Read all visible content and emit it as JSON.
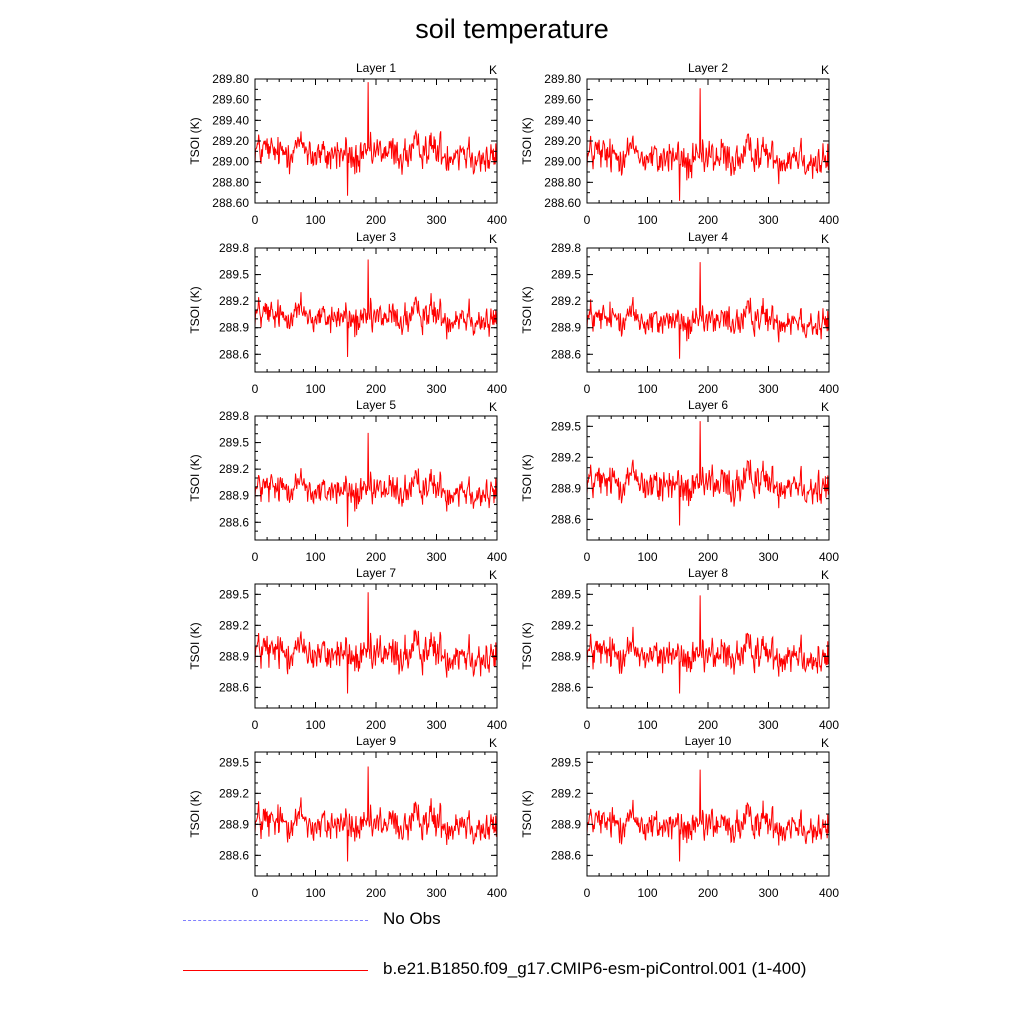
{
  "title": "soil temperature",
  "chart_data": {
    "type": "line",
    "xlabel": "",
    "ylabel": "TSOI  (K)",
    "units_label": "K",
    "x_ticks": [
      "0",
      "100",
      "200",
      "300",
      "400"
    ],
    "xlim": [
      0,
      400
    ],
    "series_names": [
      "No Obs",
      "b.e21.B1850.f09_g17.CMIP6-esm-piControl.001 (1-400)"
    ],
    "series_colors": [
      "#8080ff",
      "#ff0000"
    ],
    "panels": [
      {
        "title": "Layer 1",
        "ylim": [
          288.6,
          289.8
        ],
        "yticks": [
          "288.60",
          "288.80",
          "289.00",
          "289.20",
          "289.40",
          "289.60",
          "289.80"
        ],
        "mean": 289.08,
        "amp": 0.16,
        "spike": 289.77,
        "min": 288.67
      },
      {
        "title": "Layer 2",
        "ylim": [
          288.6,
          289.8
        ],
        "yticks": [
          "288.60",
          "288.80",
          "289.00",
          "289.20",
          "289.40",
          "289.60",
          "289.80"
        ],
        "mean": 289.04,
        "amp": 0.17,
        "spike": 289.71,
        "min": 288.62
      },
      {
        "title": "Layer 3",
        "ylim": [
          288.4,
          289.8
        ],
        "yticks": [
          "288.6",
          "288.9",
          "289.2",
          "289.5",
          "289.8"
        ],
        "mean": 289.02,
        "amp": 0.17,
        "spike": 289.67,
        "min": 288.57
      },
      {
        "title": "Layer 4",
        "ylim": [
          288.4,
          289.8
        ],
        "yticks": [
          "288.6",
          "288.9",
          "289.2",
          "289.5",
          "289.8"
        ],
        "mean": 288.98,
        "amp": 0.17,
        "spike": 289.64,
        "min": 288.55
      },
      {
        "title": "Layer 5",
        "ylim": [
          288.4,
          289.8
        ],
        "yticks": [
          "288.6",
          "288.9",
          "289.2",
          "289.5",
          "289.8"
        ],
        "mean": 288.96,
        "amp": 0.17,
        "spike": 289.61,
        "min": 288.55
      },
      {
        "title": "Layer 6",
        "ylim": [
          288.4,
          289.6
        ],
        "yticks": [
          "288.6",
          "288.9",
          "289.2",
          "289.5"
        ],
        "mean": 288.94,
        "amp": 0.17,
        "spike": 289.55,
        "min": 288.54
      },
      {
        "title": "Layer 7",
        "ylim": [
          288.4,
          289.6
        ],
        "yticks": [
          "288.6",
          "288.9",
          "289.2",
          "289.5"
        ],
        "mean": 288.92,
        "amp": 0.17,
        "spike": 289.52,
        "min": 288.54
      },
      {
        "title": "Layer 8",
        "ylim": [
          288.4,
          289.6
        ],
        "yticks": [
          "288.6",
          "288.9",
          "289.2",
          "289.5"
        ],
        "mean": 288.91,
        "amp": 0.16,
        "spike": 289.49,
        "min": 288.54
      },
      {
        "title": "Layer 9",
        "ylim": [
          288.4,
          289.6
        ],
        "yticks": [
          "288.6",
          "288.9",
          "289.2",
          "289.5"
        ],
        "mean": 288.9,
        "amp": 0.16,
        "spike": 289.46,
        "min": 288.54
      },
      {
        "title": "Layer 10",
        "ylim": [
          288.4,
          289.6
        ],
        "yticks": [
          "288.6",
          "288.9",
          "289.2",
          "289.5"
        ],
        "mean": 288.89,
        "amp": 0.16,
        "spike": 289.43,
        "min": 288.54
      }
    ]
  },
  "legend": {
    "items": [
      {
        "label": "No Obs",
        "color": "#8080ff",
        "style": "dashed"
      },
      {
        "label": "b.e21.B1850.f09_g17.CMIP6-esm-piControl.001 (1-400)",
        "color": "#ff0000",
        "style": "solid"
      }
    ]
  }
}
